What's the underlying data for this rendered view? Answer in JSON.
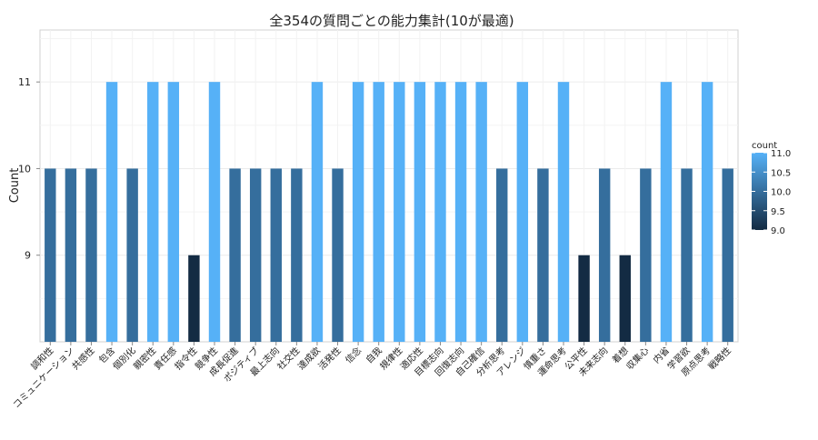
{
  "chart_data": {
    "type": "bar",
    "title": "全354の質問ごとの能力集計(10が最適)",
    "xlabel": "",
    "ylabel": "Count",
    "ylim": [
      8.0,
      11.6
    ],
    "yticks": [
      9,
      10,
      11
    ],
    "grid": true,
    "legend": {
      "title": "count",
      "placement": "right",
      "ticks": [
        "11.0",
        "10.5",
        "10.0",
        "9.5",
        "9.0"
      ],
      "min": 9.0,
      "max": 11.0,
      "color_low": "#132B43",
      "color_high": "#56B1F7"
    },
    "categories": [
      "調和性",
      "コミュニケーション",
      "共感性",
      "包含",
      "個別化",
      "親密性",
      "責任感",
      "指令性",
      "競争性",
      "成長促進",
      "ポジティブ",
      "最上志向",
      "社交性",
      "達成欲",
      "活発性",
      "信念",
      "自我",
      "規律性",
      "適応性",
      "目標志向",
      "回復志向",
      "自己確信",
      "分析思考",
      "アレンジ",
      "慎重さ",
      "運命思考",
      "公平性",
      "未来志向",
      "着想",
      "収集心",
      "内省",
      "学習欲",
      "原点思考",
      "戦略性"
    ],
    "values": [
      10,
      10,
      10,
      11,
      10,
      11,
      11,
      9,
      11,
      10,
      10,
      10,
      10,
      11,
      10,
      11,
      11,
      11,
      11,
      11,
      11,
      11,
      10,
      11,
      10,
      11,
      9,
      10,
      9,
      10,
      11,
      10,
      11,
      10
    ]
  }
}
